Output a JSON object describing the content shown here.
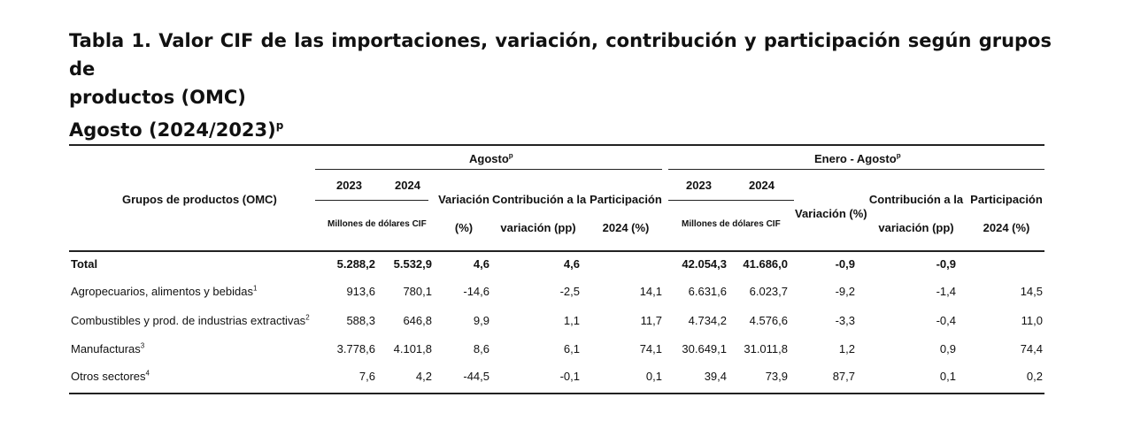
{
  "title": {
    "line1": "Tabla 1. Valor CIF de las importaciones, variación, contribución y participación según grupos de",
    "line2": "productos (OMC)",
    "line3": "Agosto (2024/2023)",
    "line3_sup": "p"
  },
  "headers": {
    "groups_label": "Grupos de productos (OMC)",
    "agosto": "Agosto",
    "agosto_sup": "p",
    "enero_agosto": "Enero - Agosto",
    "enero_agosto_sup": "p",
    "year_2023": "2023",
    "year_2024": "2024",
    "millones": "Millones de dólares CIF",
    "variacion_l1": "Variación",
    "variacion_l2": "(%)",
    "variacion_ea": "Variación (%)",
    "contrib_l1": "Contribución a la",
    "contrib_l2": "variación (pp)",
    "particip_l1": "Participación",
    "particip_l2": "2024 (%)"
  },
  "rows": [
    {
      "label": "Total",
      "sup": "",
      "v2023": "5.288,2",
      "v2024": "5.532,9",
      "var": "4,6",
      "contrib": "4,6",
      "part": "",
      "ea2023": "42.054,3",
      "ea2024": "41.686,0",
      "eavar": "-0,9",
      "eacontrib": "-0,9",
      "eapart": ""
    },
    {
      "label": "Agropecuarios, alimentos y bebidas",
      "sup": "1",
      "v2023": "913,6",
      "v2024": "780,1",
      "var": "-14,6",
      "contrib": "-2,5",
      "part": "14,1",
      "ea2023": "6.631,6",
      "ea2024": "6.023,7",
      "eavar": "-9,2",
      "eacontrib": "-1,4",
      "eapart": "14,5"
    },
    {
      "label": "Combustibles y prod. de industrias extractivas",
      "sup": "2",
      "v2023": "588,3",
      "v2024": "646,8",
      "var": "9,9",
      "contrib": "1,1",
      "part": "11,7",
      "ea2023": "4.734,2",
      "ea2024": "4.576,6",
      "eavar": "-3,3",
      "eacontrib": "-0,4",
      "eapart": "11,0"
    },
    {
      "label": "Manufacturas",
      "sup": "3",
      "v2023": "3.778,6",
      "v2024": "4.101,8",
      "var": "8,6",
      "contrib": "6,1",
      "part": "74,1",
      "ea2023": "30.649,1",
      "ea2024": "31.011,8",
      "eavar": "1,2",
      "eacontrib": "0,9",
      "eapart": "74,4"
    },
    {
      "label": "Otros sectores",
      "sup": "4",
      "v2023": "7,6",
      "v2024": "4,2",
      "var": "-44,5",
      "contrib": "-0,1",
      "part": "0,1",
      "ea2023": "39,4",
      "ea2024": "73,9",
      "eavar": "87,7",
      "eacontrib": "0,1",
      "eapart": "0,2"
    }
  ]
}
